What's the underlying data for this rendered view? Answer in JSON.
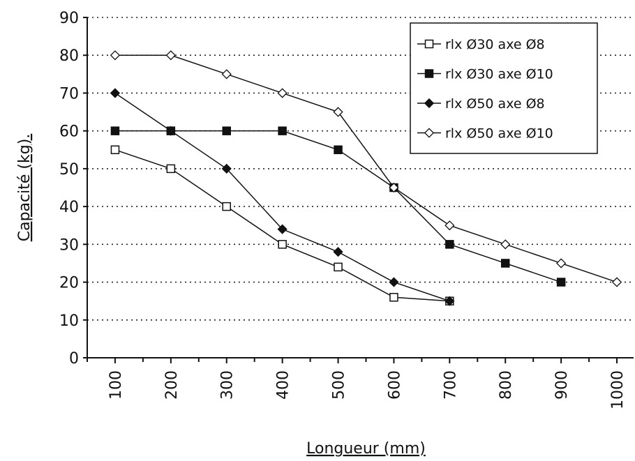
{
  "chart_data": {
    "type": "line",
    "xlabel": "Longueur (mm)",
    "ylabel": "Capacité (kg).",
    "categories": [
      "100",
      "200",
      "300",
      "400",
      "500",
      "600",
      "700",
      "800",
      "900",
      "1000"
    ],
    "x": [
      100,
      200,
      300,
      400,
      500,
      600,
      700,
      800,
      900,
      1000
    ],
    "ylim": [
      0,
      90
    ],
    "yticks": [
      0,
      10,
      20,
      30,
      40,
      50,
      60,
      70,
      80,
      90
    ],
    "grid": true,
    "legend_position": "top-right",
    "series": [
      {
        "name": "rlx Ø30 axe Ø8",
        "marker": "square-open",
        "points": [
          [
            100,
            55
          ],
          [
            200,
            50
          ],
          [
            300,
            40
          ],
          [
            400,
            30
          ],
          [
            500,
            24
          ],
          [
            600,
            16
          ],
          [
            700,
            15
          ]
        ]
      },
      {
        "name": "rlx Ø30 axe Ø10",
        "marker": "square-filled",
        "points": [
          [
            100,
            60
          ],
          [
            200,
            60
          ],
          [
            300,
            60
          ],
          [
            400,
            60
          ],
          [
            500,
            55
          ],
          [
            600,
            45
          ],
          [
            700,
            30
          ],
          [
            800,
            25
          ],
          [
            900,
            20
          ]
        ]
      },
      {
        "name": "rlx Ø50 axe Ø8",
        "marker": "diamond-filled",
        "points": [
          [
            100,
            70
          ],
          [
            200,
            60
          ],
          [
            300,
            50
          ],
          [
            400,
            34
          ],
          [
            500,
            28
          ],
          [
            600,
            20
          ],
          [
            700,
            15
          ]
        ]
      },
      {
        "name": "rlx Ø50 axe Ø10",
        "marker": "diamond-open",
        "points": [
          [
            100,
            80
          ],
          [
            200,
            80
          ],
          [
            300,
            75
          ],
          [
            400,
            70
          ],
          [
            500,
            65
          ],
          [
            600,
            45
          ],
          [
            700,
            35
          ],
          [
            800,
            30
          ],
          [
            900,
            25
          ],
          [
            1000,
            20
          ]
        ]
      }
    ]
  }
}
